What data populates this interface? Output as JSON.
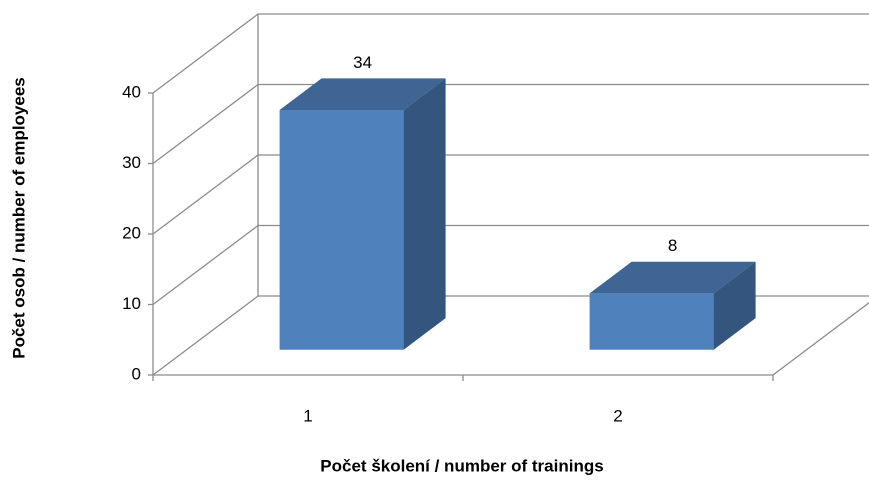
{
  "chart_data": {
    "type": "bar3d",
    "x_label": "Počet školení / number of trainings",
    "y_label": "Počet osob / number of employees",
    "categories": [
      "1",
      "2"
    ],
    "values": [
      34,
      8
    ],
    "color": "#4f81bd",
    "ylim": [
      0,
      40
    ],
    "yticks": [
      0,
      10,
      20,
      30,
      40
    ],
    "grid": true
  }
}
